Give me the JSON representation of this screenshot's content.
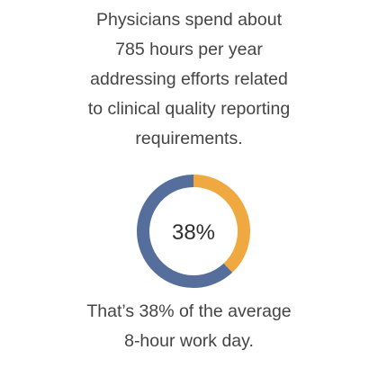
{
  "headline": "Physicians spend about\n785 hours per year\naddressing efforts related\nto clinical quality reporting\nrequirements.",
  "footer": "That’s 38% of the average\n8-hour work day.",
  "chart_data": {
    "type": "pie",
    "style": "donut",
    "center_label": "38%",
    "slices": [
      {
        "value": 38,
        "color": "#f0a941"
      },
      {
        "value": 62,
        "color": "#566e9b"
      }
    ]
  }
}
